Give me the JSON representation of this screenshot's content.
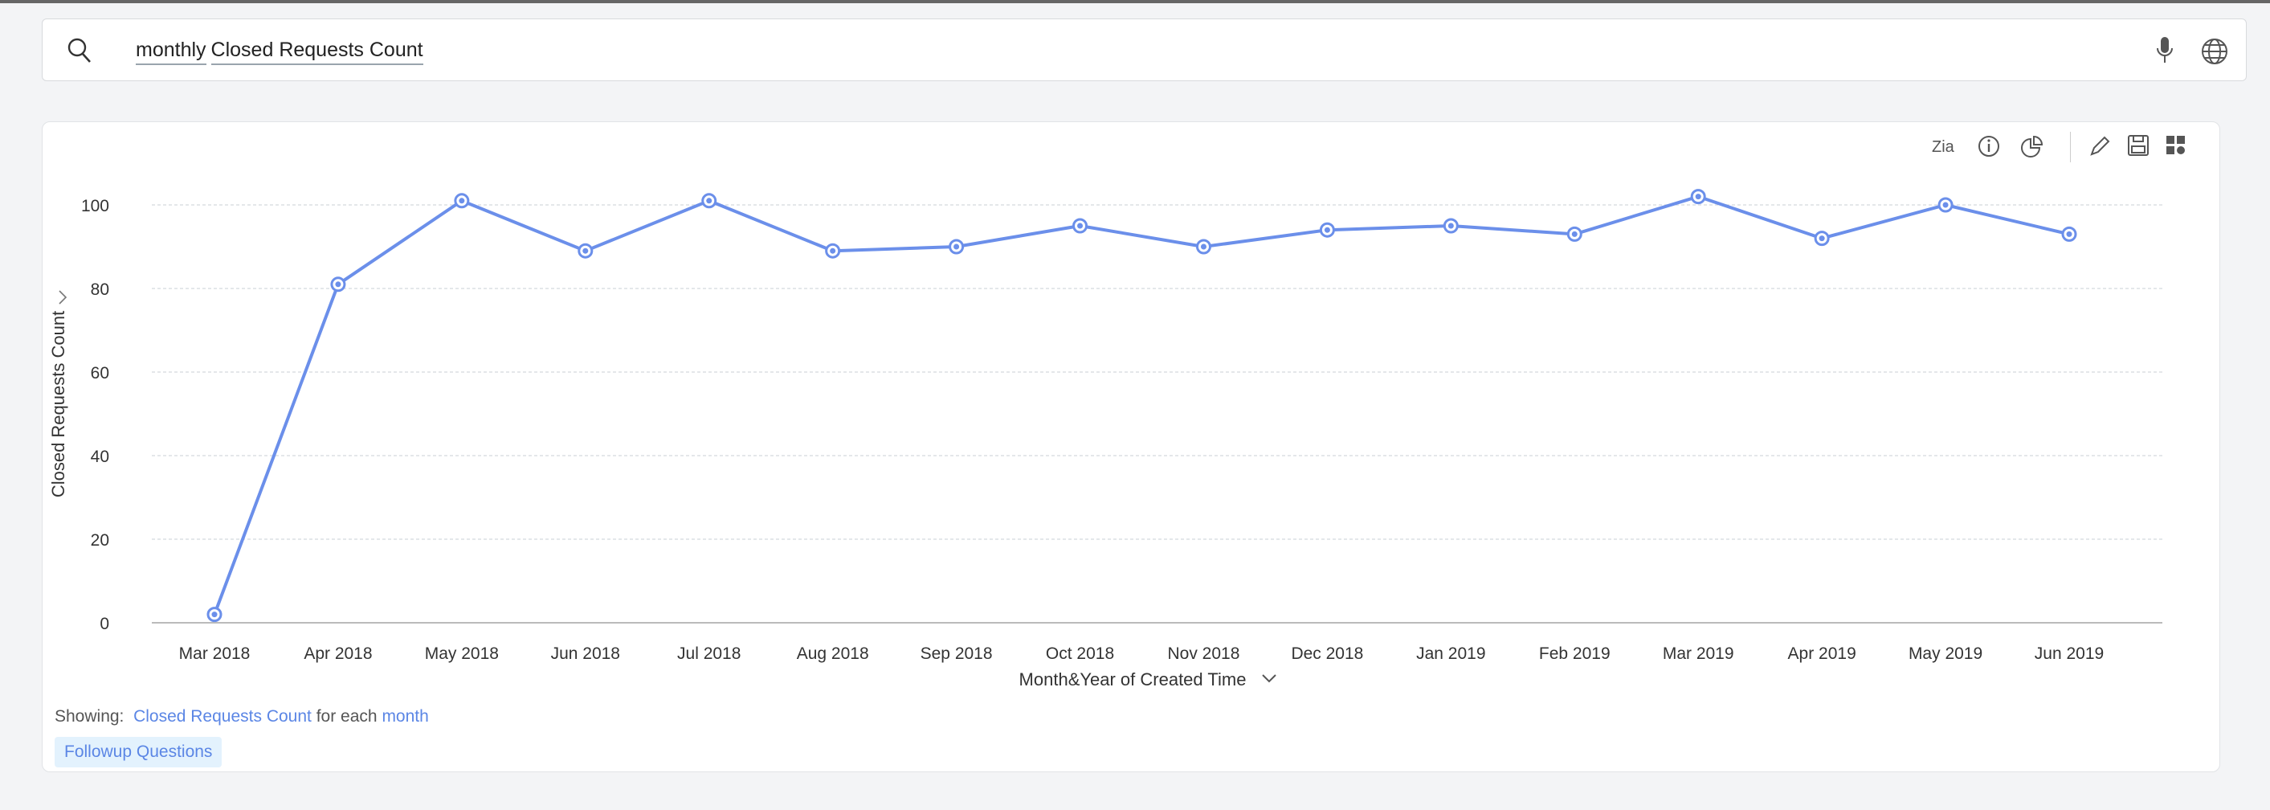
{
  "search": {
    "tokens": [
      "monthly",
      "Closed Requests Count"
    ]
  },
  "toolbar": {
    "icons": [
      "zia-icon",
      "info-icon",
      "pie-chart-icon",
      "pencil-icon",
      "save-icon",
      "add-widget-icon"
    ]
  },
  "footer": {
    "showing_label": "Showing:",
    "measure": "Closed Requests Count",
    "for_each": "for each",
    "dimension": "month",
    "followup_label": "Followup Questions"
  },
  "colors": {
    "line": "#6b8fea",
    "accent": "#5b86e5"
  },
  "chart_data": {
    "type": "line",
    "title": "",
    "xlabel": "Month&Year of Created Time",
    "ylabel": "Closed Requests Count",
    "ylim": [
      0,
      110
    ],
    "yticks": [
      0,
      20,
      40,
      60,
      80,
      100
    ],
    "grid": true,
    "categories": [
      "Mar 2018",
      "Apr 2018",
      "May 2018",
      "Jun 2018",
      "Jul 2018",
      "Aug 2018",
      "Sep 2018",
      "Oct 2018",
      "Nov 2018",
      "Dec 2018",
      "Jan 2019",
      "Feb 2019",
      "Mar 2019",
      "Apr 2019",
      "May 2019",
      "Jun 2019"
    ],
    "series": [
      {
        "name": "Closed Requests Count",
        "values": [
          2,
          81,
          101,
          89,
          101,
          89,
          90,
          95,
          90,
          94,
          95,
          93,
          102,
          92,
          100,
          93
        ]
      }
    ]
  }
}
